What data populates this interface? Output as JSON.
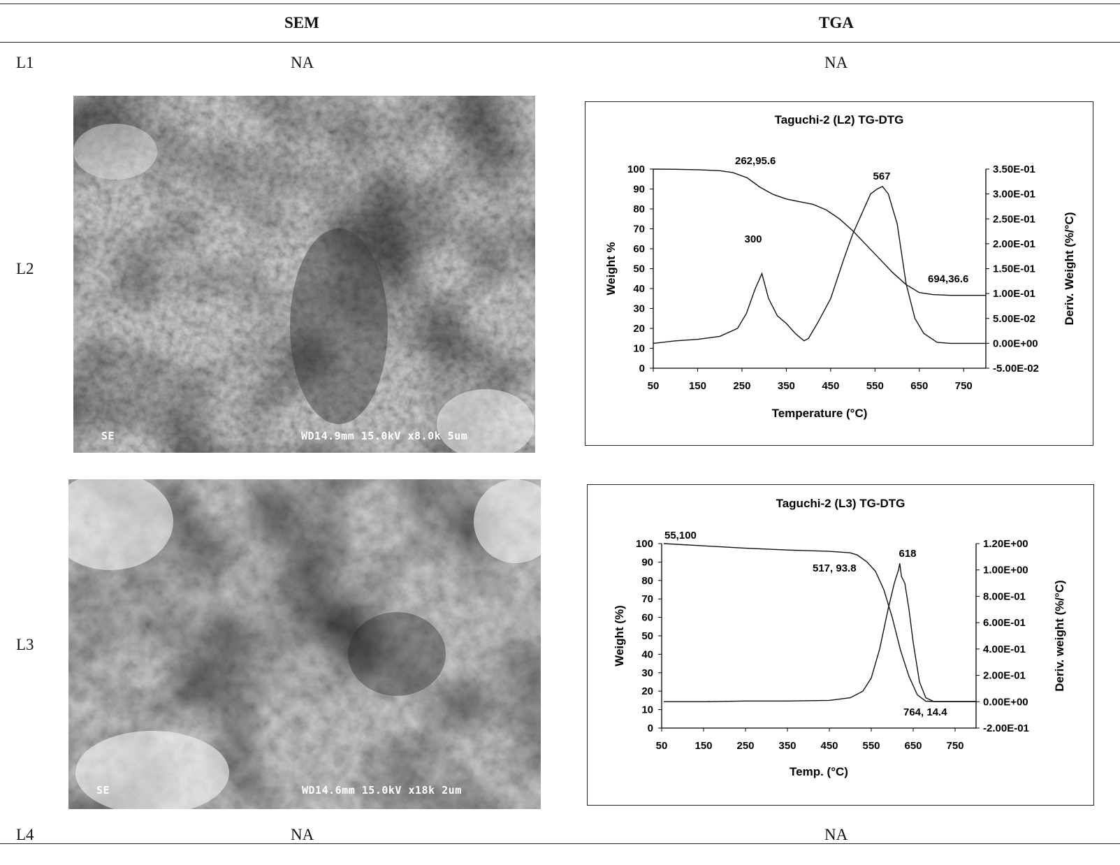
{
  "table": {
    "col_sem": "SEM",
    "col_tga": "TGA",
    "rows": [
      {
        "label": "L1",
        "sem": "NA",
        "tga": "NA"
      },
      {
        "label": "L2"
      },
      {
        "label": "L3"
      },
      {
        "label": "L4",
        "sem": "NA",
        "tga": "NA"
      }
    ]
  },
  "sem_images": [
    {
      "bar_left": "SE",
      "bar_right": "WD14.9mm 15.0kV x8.0k  5um"
    },
    {
      "bar_left": "SE",
      "bar_right": "WD14.6mm 15.0kV x18k  2um"
    }
  ],
  "chart_data": [
    {
      "type": "line",
      "title": "Taguchi-2 (L2) TG-DTG",
      "xlabel": "Temperature (°C)",
      "ylabel": "Weight %",
      "y2label": "Deriv. Weight (%/°C)",
      "xlim": [
        50,
        800
      ],
      "ylim": [
        0,
        100
      ],
      "y2lim": [
        -0.05,
        0.35
      ],
      "xticks": [
        "50",
        "150",
        "250",
        "350",
        "450",
        "550",
        "650",
        "750"
      ],
      "yticks": [
        "0",
        "10",
        "20",
        "30",
        "40",
        "50",
        "60",
        "70",
        "80",
        "90",
        "100"
      ],
      "y2ticks": [
        "-5.00E-02",
        "0.00E+00",
        "5.00E-02",
        "1.00E-01",
        "1.50E-01",
        "2.00E-01",
        "2.50E-01",
        "3.00E-01",
        "3.50E-01"
      ],
      "series": [
        {
          "axis": "left",
          "x": [
            50,
            100,
            150,
            200,
            230,
            262,
            290,
            320,
            350,
            380,
            410,
            440,
            470,
            500,
            530,
            560,
            590,
            620,
            650,
            680,
            720,
            760,
            800
          ],
          "y": [
            100,
            99.9,
            99.7,
            99.2,
            98.2,
            95.6,
            91,
            87.3,
            85,
            83.6,
            82.3,
            79.5,
            75,
            69,
            62,
            55,
            48,
            42,
            38,
            37,
            36.6,
            36.6,
            36.6
          ]
        },
        {
          "axis": "right",
          "x": [
            50,
            100,
            150,
            200,
            240,
            260,
            280,
            295,
            310,
            330,
            350,
            370,
            390,
            400,
            420,
            450,
            480,
            500,
            520,
            540,
            555,
            567,
            580,
            600,
            620,
            640,
            660,
            690,
            720,
            760,
            800
          ],
          "y": [
            0.0,
            0.005,
            0.008,
            0.014,
            0.03,
            0.06,
            0.11,
            0.14,
            0.09,
            0.055,
            0.04,
            0.02,
            0.005,
            0.01,
            0.04,
            0.09,
            0.17,
            0.22,
            0.26,
            0.3,
            0.31,
            0.315,
            0.3,
            0.24,
            0.12,
            0.05,
            0.02,
            0.002,
            0.0,
            0.0,
            0.0
          ]
        }
      ],
      "annotations": [
        "262,95.6",
        "300",
        "567",
        "694,36.6"
      ]
    },
    {
      "type": "line",
      "title": "Taguchi-2 (L3) TG-DTG",
      "xlabel": "Temp. (°C)",
      "ylabel": "Weight (%)",
      "y2label": "Deriv. weight (%/°C)",
      "xlim": [
        50,
        800
      ],
      "ylim": [
        0,
        100
      ],
      "y2lim": [
        -0.2,
        1.2
      ],
      "xticks": [
        "50",
        "150",
        "250",
        "350",
        "450",
        "550",
        "650",
        "750"
      ],
      "yticks": [
        "0",
        "10",
        "20",
        "30",
        "40",
        "50",
        "60",
        "70",
        "80",
        "90",
        "100"
      ],
      "y2ticks": [
        "-2.00E-01",
        "0.00E+00",
        "2.00E-01",
        "4.00E-01",
        "6.00E-01",
        "8.00E-01",
        "1.00E+00",
        "1.20E+00"
      ],
      "series": [
        {
          "axis": "left",
          "x": [
            55,
            150,
            250,
            350,
            450,
            500,
            517,
            540,
            560,
            580,
            600,
            620,
            640,
            660,
            680,
            700,
            720,
            764,
            800
          ],
          "y": [
            100,
            98.8,
            97.5,
            96.5,
            95.8,
            95,
            93.8,
            90,
            85,
            75,
            60,
            42,
            28,
            18,
            14.6,
            14.4,
            14.4,
            14.4,
            14.4
          ]
        },
        {
          "axis": "right",
          "x": [
            55,
            150,
            250,
            350,
            450,
            500,
            530,
            550,
            570,
            590,
            605,
            615,
            618,
            622,
            630,
            640,
            650,
            665,
            680,
            700,
            800
          ],
          "y": [
            0.0,
            0.0,
            0.005,
            0.005,
            0.01,
            0.03,
            0.08,
            0.18,
            0.4,
            0.7,
            0.9,
            1.0,
            1.05,
            0.95,
            0.9,
            0.7,
            0.45,
            0.15,
            0.03,
            0.0,
            0.0
          ]
        }
      ],
      "annotations": [
        "55,100",
        "517, 93.8",
        "618",
        "764, 14.4"
      ]
    }
  ]
}
